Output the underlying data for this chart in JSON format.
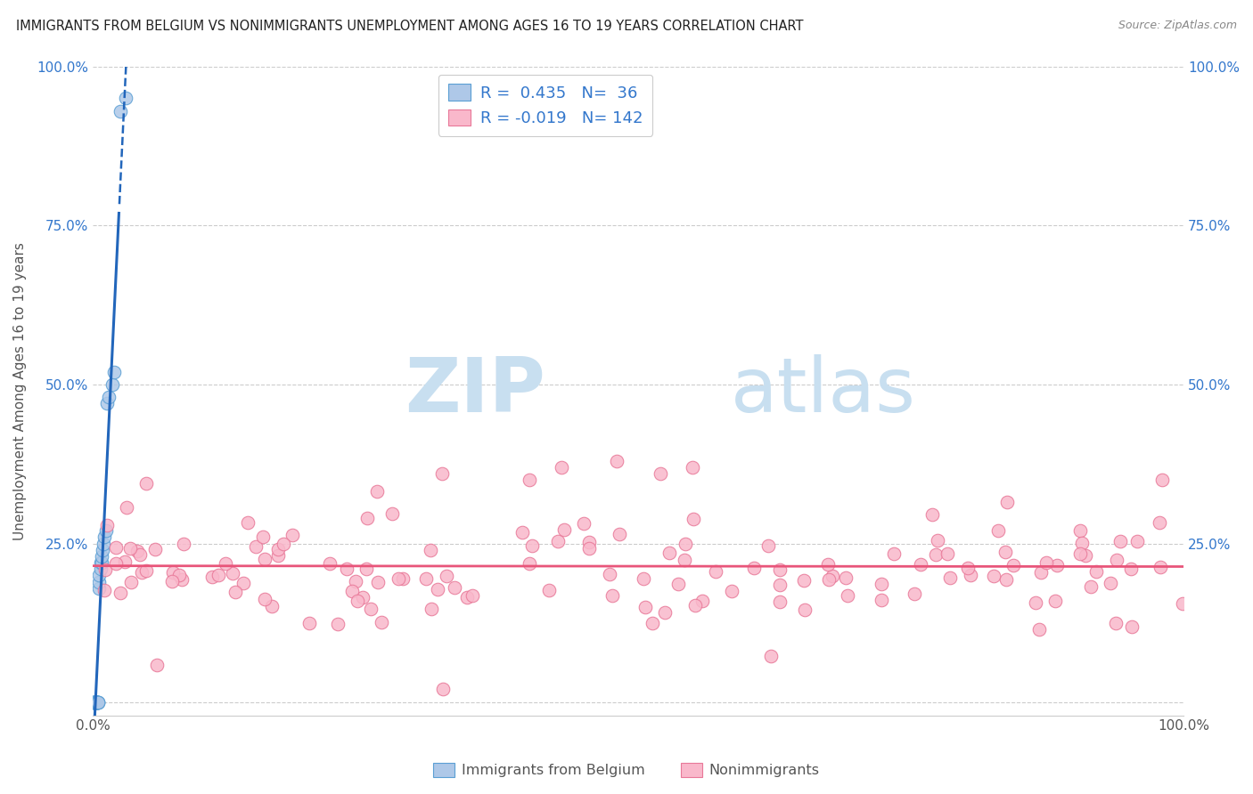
{
  "title": "IMMIGRANTS FROM BELGIUM VS NONIMMIGRANTS UNEMPLOYMENT AMONG AGES 16 TO 19 YEARS CORRELATION CHART",
  "source": "Source: ZipAtlas.com",
  "ylabel": "Unemployment Among Ages 16 to 19 years",
  "xlim": [
    0.0,
    1.0
  ],
  "ylim": [
    -0.02,
    1.0
  ],
  "ytick_vals": [
    0.0,
    0.25,
    0.5,
    0.75,
    1.0
  ],
  "xtick_vals": [
    0.0,
    0.25,
    0.5,
    0.75,
    1.0
  ],
  "legend_label1": "Immigrants from Belgium",
  "legend_label2": "Nonimmigrants",
  "r1": 0.435,
  "n1": 36,
  "r2": -0.019,
  "n2": 142,
  "blue_fill": "#aec8e8",
  "blue_edge": "#5a9fd4",
  "pink_fill": "#f9b8cb",
  "pink_edge": "#e87898",
  "blue_line_color": "#2266bb",
  "pink_line_color": "#e8557a",
  "grid_color": "#cccccc",
  "axis_color": "#555555",
  "tick_color": "#3377cc",
  "watermark_zip": "ZIP",
  "watermark_atlas": "atlas",
  "watermark_color_zip": "#c8dff0",
  "watermark_color_atlas": "#c8dff0"
}
